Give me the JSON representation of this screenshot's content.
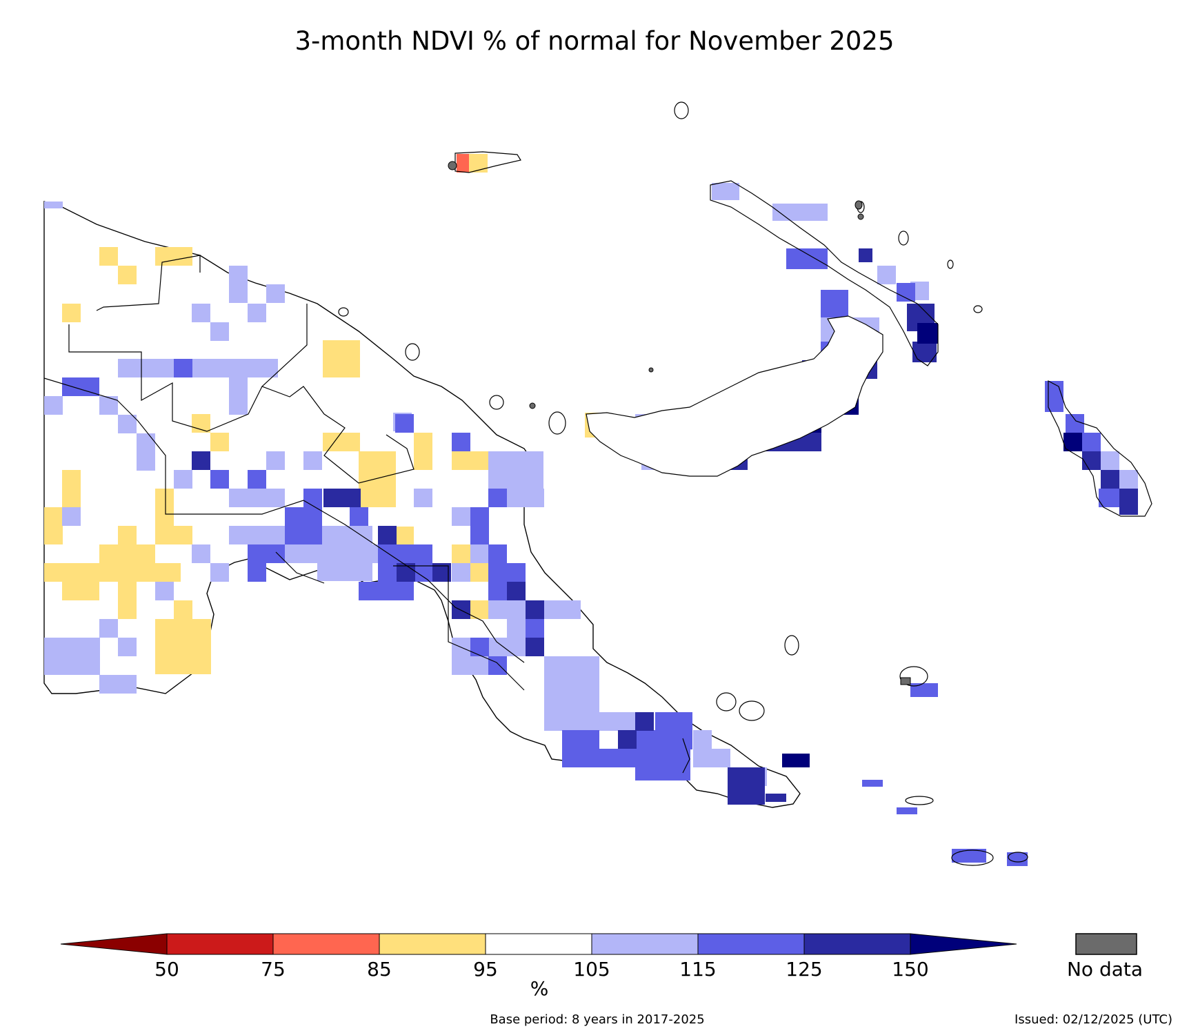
{
  "title": "3-month NDVI % of normal for November 2025",
  "legend": {
    "unit": "%",
    "ticks": [
      "50",
      "75",
      "85",
      "95",
      "105",
      "115",
      "125",
      "150"
    ],
    "nodata_label": "No data",
    "colors": {
      "below_50": "#8b0000",
      "c50_75": "#cc1a1a",
      "c75_85": "#ff6650",
      "c85_95": "#ffe07c",
      "c95_105": "#ffffff",
      "c105_115": "#b3b6f8",
      "c115_125": "#5d5fe6",
      "c125_150": "#2a2aa0",
      "above_150": "#00007a",
      "nodata": "#6b6b6b"
    }
  },
  "footer": {
    "base_period": "Base period: 8 years in 2017-2025",
    "issued": "Issued: 02/12/2025 (UTC)"
  }
}
